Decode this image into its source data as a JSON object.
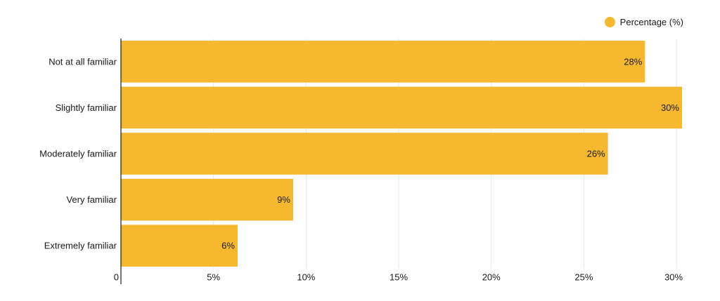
{
  "legend": {
    "label": "Percentage (%)",
    "placement": "top-right"
  },
  "colors": {
    "bar": "#F5B82E",
    "axis": "#1a1a1a",
    "grid": "#E8E8E8",
    "text": "#1a1a1a"
  },
  "chart_data": {
    "type": "bar",
    "orientation": "horizontal",
    "categories": [
      "Not at all familiar",
      "Slightly familiar",
      "Moderately familiar",
      "Very familiar",
      "Extremely familiar"
    ],
    "series": [
      {
        "name": "Percentage (%)",
        "values": [
          28.3,
          30.3,
          26.3,
          9.3,
          6.3
        ],
        "labels": [
          "28%",
          "30%",
          "26%",
          "9%",
          "6%"
        ]
      }
    ],
    "title": "",
    "xlabel": "",
    "ylabel": "",
    "xlim": [
      0,
      30.3
    ],
    "xticks": [
      0,
      5,
      10,
      15,
      20,
      25,
      30
    ],
    "xtick_labels": [
      "0",
      "5%",
      "10%",
      "15%",
      "20%",
      "25%",
      "30%"
    ],
    "grid": true,
    "legend_position": "top-right"
  }
}
